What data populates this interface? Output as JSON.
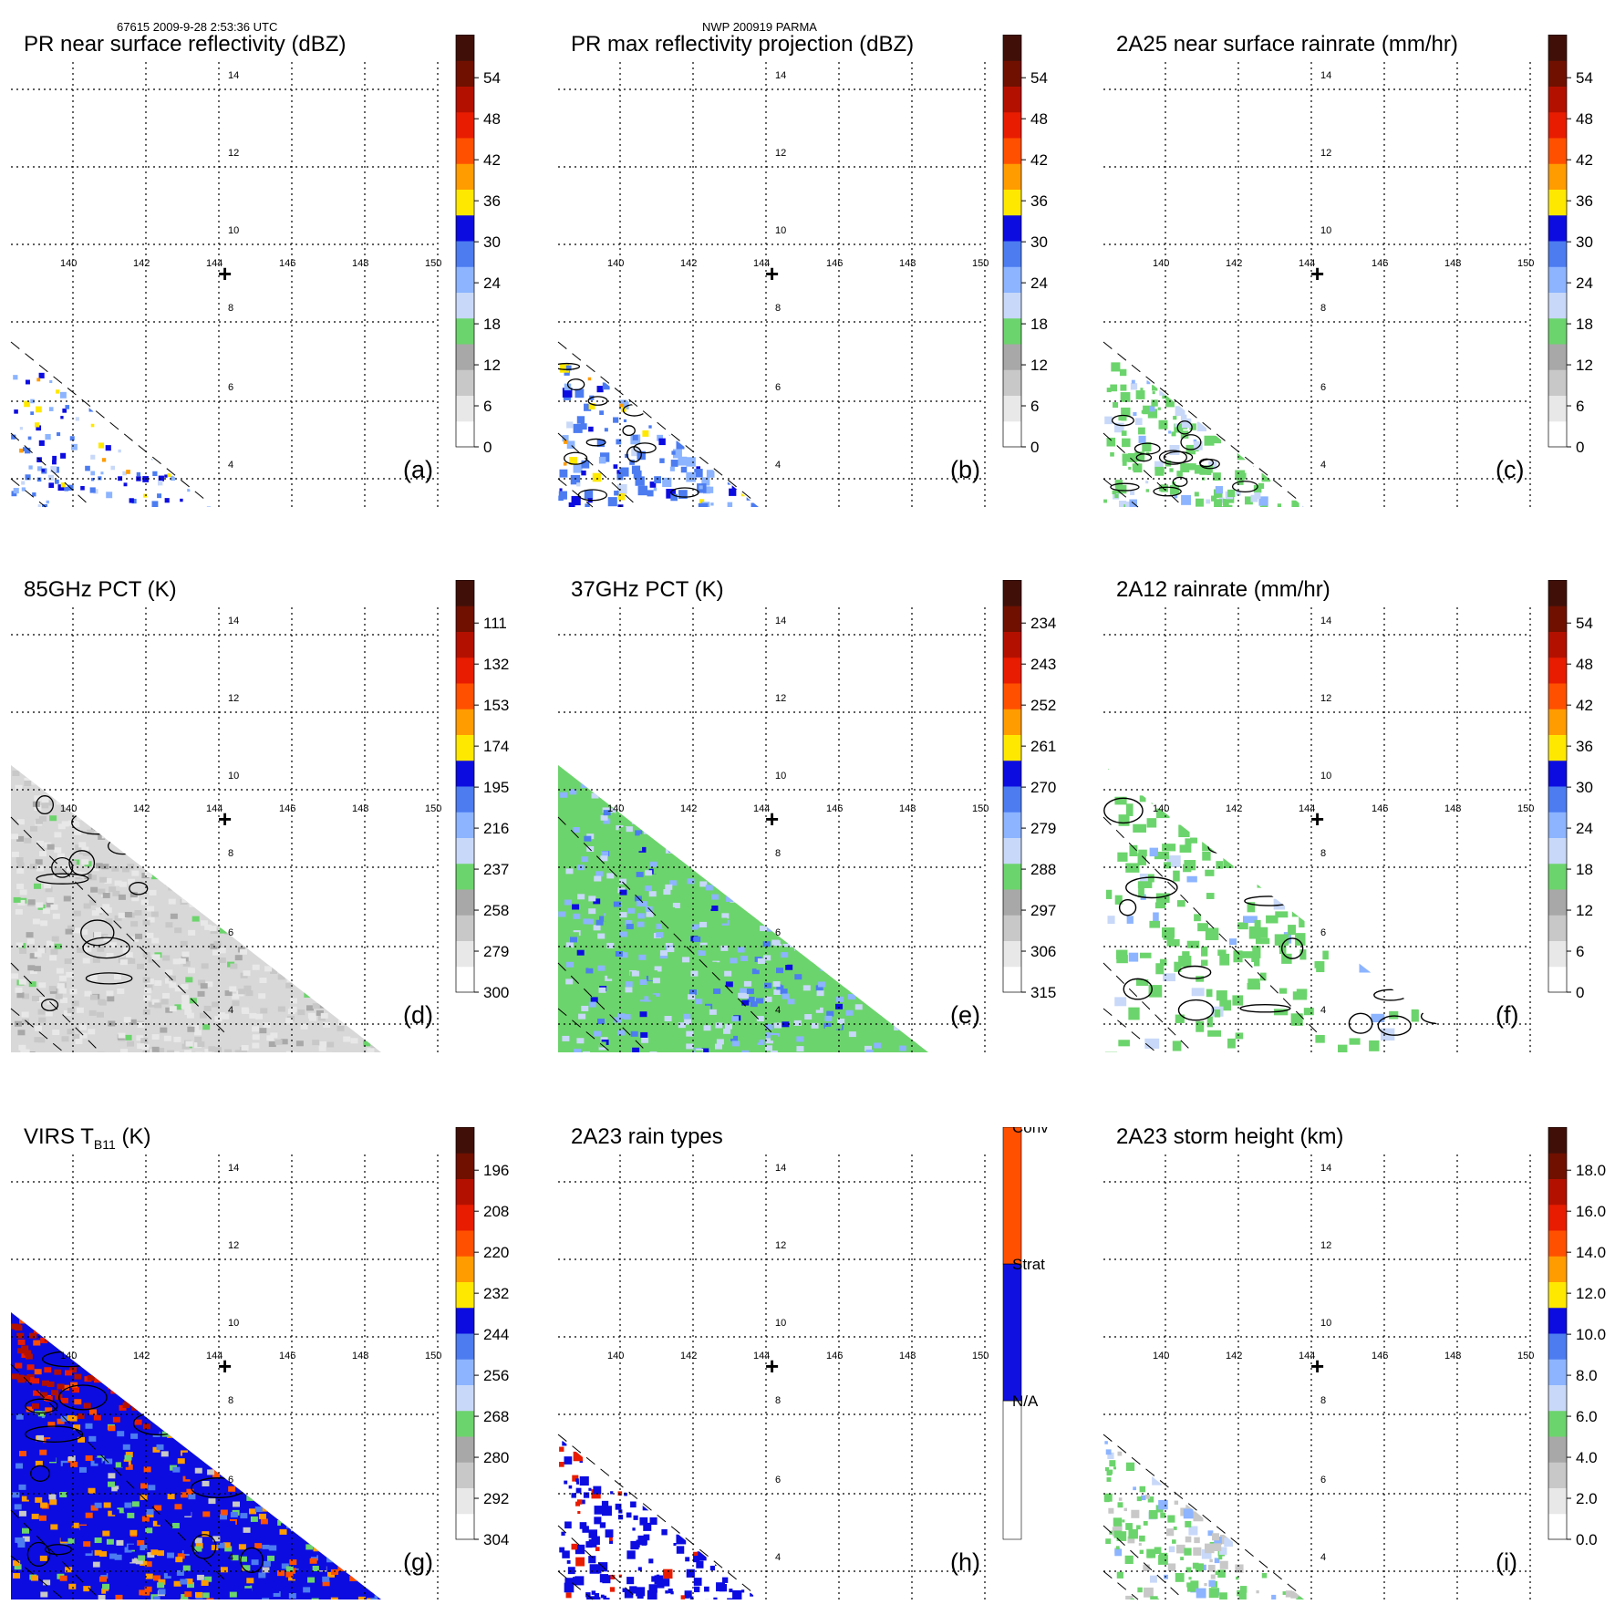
{
  "header": {
    "left": "67615 2009-9-28 2:53:36 UTC",
    "center": "NWP 200919 PARMA"
  },
  "colors": {
    "palette": [
      "#ffffff",
      "#e8e8e8",
      "#c8c8c8",
      "#a8a8a8",
      "#6cd46c",
      "#c8d8f8",
      "#8cb4ff",
      "#4c7cf0",
      "#0c0ce0",
      "#ffe800",
      "#ff9c00",
      "#ff5000",
      "#e81c00",
      "#b41000",
      "#701000",
      "#401008"
    ],
    "swath_dash": "#000000",
    "grid": "#000000"
  },
  "geo_grid": {
    "lon_ticks": [
      "140",
      "142",
      "144",
      "146",
      "148",
      "150"
    ],
    "lat_ticks": [
      "4",
      "6",
      "8",
      "10",
      "12",
      "14"
    ],
    "center_marker": "+"
  },
  "chart_data": [
    {
      "type": "heatmap",
      "id": "a",
      "title": "PR near surface reflectivity (dBZ)",
      "panel_label": "(a)",
      "colorbar_ticks": [
        "0",
        "6",
        "12",
        "18",
        "24",
        "30",
        "36",
        "42",
        "48",
        "54"
      ],
      "colorbar_range": [
        0,
        60
      ],
      "field": "pr_scatter"
    },
    {
      "type": "heatmap",
      "id": "b",
      "title": "PR max reflectivity projection (dBZ)",
      "panel_label": "(b)",
      "colorbar_ticks": [
        "0",
        "6",
        "12",
        "18",
        "24",
        "30",
        "36",
        "42",
        "48",
        "54"
      ],
      "colorbar_range": [
        0,
        60
      ],
      "field": "pr_contour"
    },
    {
      "type": "heatmap",
      "id": "c",
      "title": "2A25 near surface rainrate (mm/hr)",
      "panel_label": "(c)",
      "colorbar_ticks": [
        "0",
        "6",
        "12",
        "18",
        "24",
        "30",
        "36",
        "42",
        "48",
        "54"
      ],
      "colorbar_range": [
        0,
        60
      ],
      "field": "pr_green"
    },
    {
      "type": "heatmap",
      "id": "d",
      "title": "85GHz PCT (K)",
      "panel_label": "(d)",
      "colorbar_ticks": [
        "300",
        "279",
        "258",
        "237",
        "216",
        "195",
        "174",
        "153",
        "132",
        "111"
      ],
      "colorbar_range": [
        300,
        90
      ],
      "field": "tmi_gray"
    },
    {
      "type": "heatmap",
      "id": "e",
      "title": "37GHz PCT (K)",
      "panel_label": "(e)",
      "colorbar_ticks": [
        "315",
        "306",
        "297",
        "288",
        "279",
        "270",
        "261",
        "252",
        "243",
        "234"
      ],
      "colorbar_range": [
        315,
        225
      ],
      "field": "tmi_green"
    },
    {
      "type": "heatmap",
      "id": "f",
      "title": "2A12 rainrate (mm/hr)",
      "panel_label": "(f)",
      "colorbar_ticks": [
        "0",
        "6",
        "12",
        "18",
        "24",
        "30",
        "36",
        "42",
        "48",
        "54"
      ],
      "colorbar_range": [
        0,
        60
      ],
      "field": "tmi_rain"
    },
    {
      "type": "heatmap",
      "id": "g",
      "title_main": "VIRS T",
      "title_sub": "B11",
      "title_unit": " (K)",
      "panel_label": "(g)",
      "colorbar_ticks": [
        "304",
        "292",
        "280",
        "268",
        "256",
        "244",
        "232",
        "220",
        "208",
        "196"
      ],
      "colorbar_range": [
        304,
        184
      ],
      "field": "virs"
    },
    {
      "type": "heatmap",
      "id": "h",
      "title": "2A23 rain types",
      "panel_label": "(h)",
      "colorbar_categories": [
        "N/A",
        "Strat",
        "Conv"
      ],
      "field": "rain_type"
    },
    {
      "type": "heatmap",
      "id": "i",
      "title": "2A23 storm height (km)",
      "panel_label": "(i)",
      "colorbar_ticks": [
        "0.0",
        "2.0",
        "4.0",
        "6.0",
        "8.0",
        "10.0",
        "12.0",
        "14.0",
        "16.0",
        "18.0"
      ],
      "colorbar_range": [
        0,
        20
      ],
      "field": "pr_height"
    }
  ]
}
